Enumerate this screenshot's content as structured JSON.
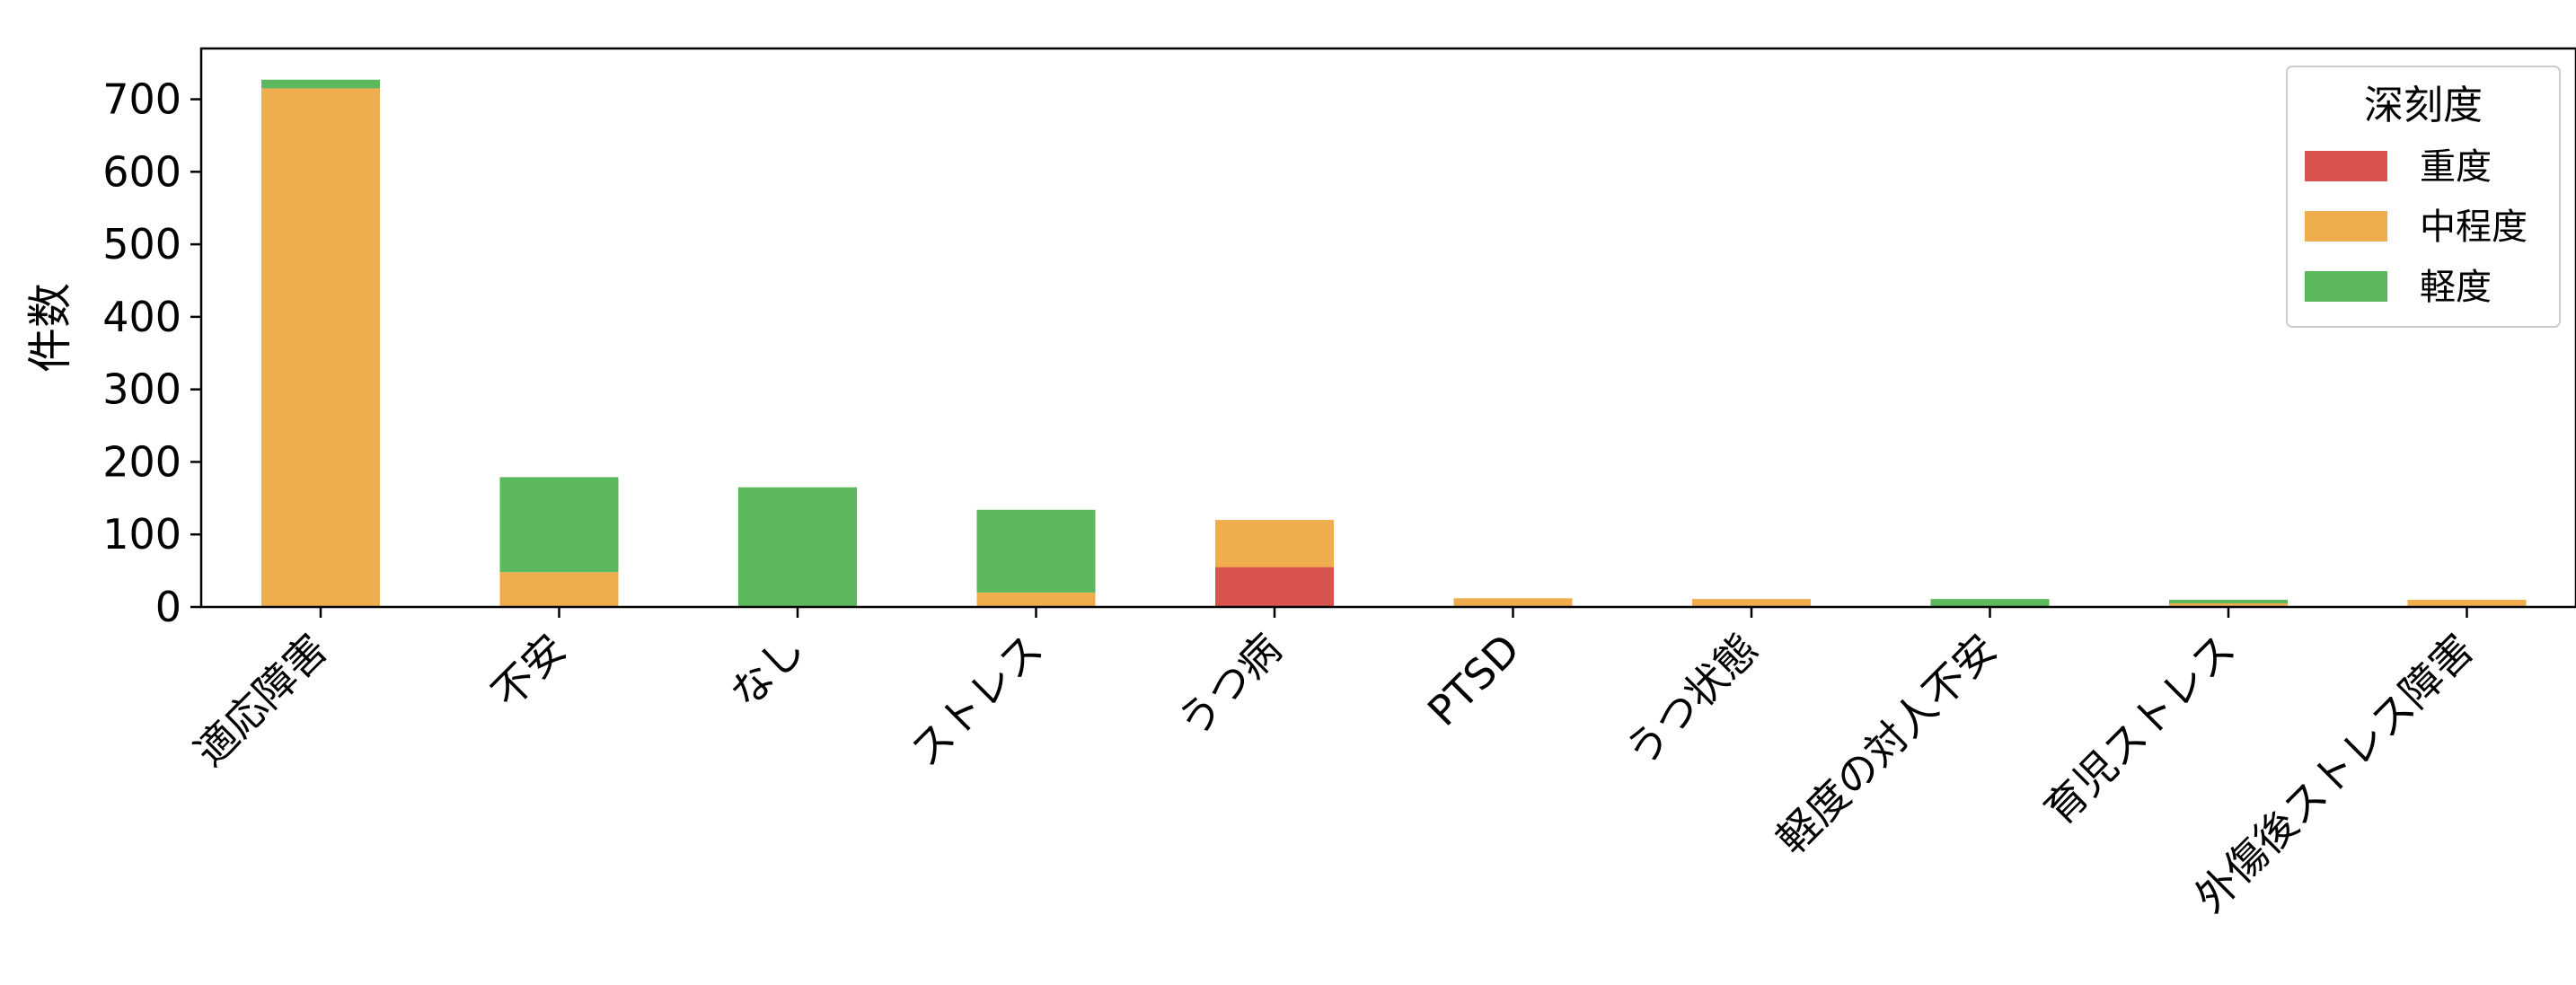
{
  "chart_data": {
    "type": "bar",
    "stacked": true,
    "ylabel": "件数",
    "xlabel": "",
    "ylim": [
      0,
      770
    ],
    "yticks": [
      "0",
      "100",
      "200",
      "300",
      "400",
      "500",
      "600",
      "700"
    ],
    "grid": false,
    "legend": {
      "title": "深刻度",
      "position": "top-right"
    },
    "categories": [
      "適応障害",
      "不安",
      "なし",
      "ストレス",
      "うつ病",
      "PTSD",
      "うつ状態",
      "軽度の対人不安",
      "育児ストレス",
      "外傷後ストレス障害"
    ],
    "series": [
      {
        "name": "重度",
        "color": "#d9534f",
        "values": [
          0,
          0,
          0,
          0,
          55,
          0,
          0,
          0,
          0,
          0
        ]
      },
      {
        "name": "中程度",
        "color": "#f0ad4e",
        "values": [
          715,
          48,
          0,
          20,
          65,
          12,
          11,
          0,
          5,
          10
        ]
      },
      {
        "name": "軽度",
        "color": "#5cb85c",
        "values": [
          12,
          131,
          165,
          114,
          0,
          0,
          0,
          11,
          5,
          0
        ]
      }
    ]
  }
}
